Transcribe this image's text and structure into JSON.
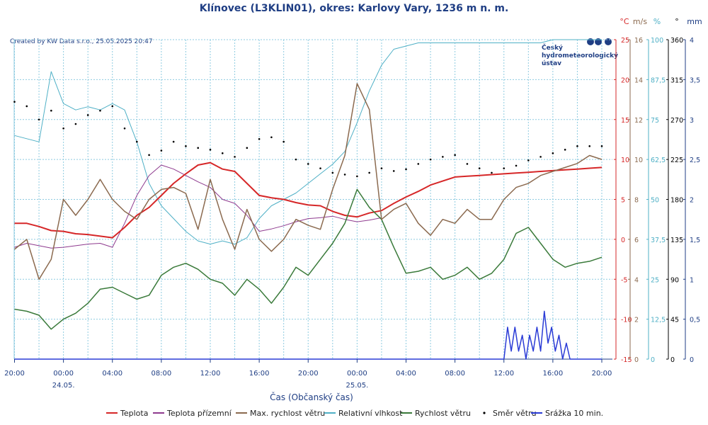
{
  "chart_data": {
    "type": "line",
    "title": "Klínovec (L3KLIN01), okres: Karlovy Vary, 1236 m n. m.",
    "credit": "Created by KW Data s.r.o., 25.05.2025 20:47",
    "logo_lines": [
      "Český",
      "hydrometeorologický",
      "ústav"
    ],
    "xlabel": "Čas (Občanský čas)",
    "x_ticks": [
      "20:00",
      "00:00",
      "04:00",
      "08:00",
      "12:00",
      "16:00",
      "20:00",
      "00:00",
      "04:00",
      "08:00",
      "12:00",
      "16:00",
      "20:00"
    ],
    "date_labels": [
      {
        "after_tick": 1,
        "text": "24.05."
      },
      {
        "after_tick": 7,
        "text": "25.05."
      }
    ],
    "xlim_hours": [
      0,
      48
    ],
    "axes": [
      {
        "unit": "°C",
        "color": "#d62728",
        "min": -15,
        "max": 25,
        "ticks": [
          "-15",
          "-10",
          "-5",
          "0",
          "5",
          "10",
          "15",
          "20",
          "25"
        ]
      },
      {
        "unit": "m/s",
        "color": "#8b6a4f",
        "min": 0,
        "max": 16,
        "ticks": [
          "0",
          "2",
          "4",
          "6",
          "8",
          "10",
          "12",
          "14",
          "16"
        ]
      },
      {
        "unit": "%",
        "color": "#4fb0c6",
        "min": 0,
        "max": 100,
        "ticks": [
          "0",
          "12,5",
          "25",
          "37,5",
          "50",
          "62,5",
          "75",
          "87,5",
          "100"
        ]
      },
      {
        "unit": "°",
        "color": "#000000",
        "min": 0,
        "max": 360,
        "ticks": [
          "0",
          "45",
          "90",
          "135",
          "180",
          "225",
          "270",
          "315",
          "360"
        ]
      },
      {
        "unit": "mm",
        "color": "#1f3e84",
        "min": 0,
        "max": 4,
        "ticks": [
          "0",
          "0,5",
          "1",
          "1,5",
          "2",
          "2,5",
          "3",
          "3,5",
          "4"
        ]
      }
    ],
    "series": [
      {
        "name": "Teplota",
        "axis": 0,
        "color": "#d62728",
        "width": 2,
        "style": "line",
        "x": [
          0,
          1,
          2,
          3,
          4,
          5,
          6,
          7,
          8,
          9,
          10,
          11,
          12,
          13,
          14,
          15,
          16,
          17,
          18,
          19,
          20,
          21,
          22,
          23,
          24,
          25,
          26,
          27,
          28,
          29,
          30,
          31,
          32,
          33,
          34,
          35,
          36,
          37,
          38,
          39,
          40,
          41,
          42,
          43,
          44,
          45,
          46,
          47,
          48
        ],
        "y": [
          2.0,
          2.0,
          1.6,
          1.1,
          1.0,
          0.7,
          0.6,
          0.4,
          0.2,
          1.5,
          3.0,
          4.0,
          5.5,
          7.0,
          8.2,
          9.3,
          9.6,
          8.8,
          8.5,
          7.0,
          5.5,
          5.2,
          5.0,
          4.6,
          4.3,
          4.2,
          3.5,
          3.0,
          2.8,
          3.3,
          3.6,
          4.5,
          5.3,
          6.0,
          6.8,
          7.3,
          7.8,
          7.9,
          8.0,
          8.1,
          8.2,
          8.3,
          8.4,
          8.5,
          8.6,
          8.7,
          8.8,
          8.9,
          9.0
        ]
      },
      {
        "name": "Teplota přízemní",
        "axis": 0,
        "color": "#8e3a8e",
        "width": 1,
        "style": "line",
        "x": [
          0,
          1,
          2,
          3,
          4,
          5,
          6,
          7,
          8,
          9,
          10,
          11,
          12,
          13,
          14,
          15,
          16,
          17,
          18,
          19,
          20,
          21,
          22,
          23,
          24,
          25,
          26,
          27,
          28,
          29,
          30
        ],
        "y": [
          -1.0,
          -0.5,
          -0.8,
          -1.1,
          -1.0,
          -0.8,
          -0.6,
          -0.5,
          -1.0,
          2.0,
          5.5,
          8.0,
          9.3,
          8.8,
          8.0,
          7.2,
          6.5,
          5.0,
          4.5,
          3.0,
          1.0,
          1.3,
          1.7,
          2.2,
          2.6,
          2.7,
          2.9,
          2.5,
          2.2,
          2.4,
          2.7
        ]
      },
      {
        "name": "Max. rychlost větru",
        "axis": 1,
        "color": "#8b6a4f",
        "width": 1.5,
        "style": "line",
        "x": [
          0,
          1,
          2,
          3,
          4,
          5,
          6,
          7,
          8,
          9,
          10,
          11,
          12,
          13,
          14,
          15,
          16,
          17,
          18,
          19,
          20,
          21,
          22,
          23,
          24,
          25,
          26,
          27,
          28,
          29,
          30,
          31,
          32,
          33,
          34,
          35,
          36,
          37,
          38,
          39,
          40,
          41,
          42,
          43,
          44,
          45,
          46,
          47,
          48
        ],
        "y": [
          5.5,
          6.0,
          4.0,
          5.0,
          8.0,
          7.2,
          8.0,
          9.0,
          8.0,
          7.4,
          7.0,
          8.0,
          8.5,
          8.6,
          8.3,
          6.5,
          9.0,
          7.0,
          5.5,
          7.5,
          6.0,
          5.4,
          6.0,
          7.0,
          6.7,
          6.5,
          8.5,
          10.2,
          13.8,
          12.5,
          7.0,
          7.5,
          7.8,
          6.8,
          6.2,
          7.0,
          6.8,
          7.5,
          7.0,
          7.0,
          8.0,
          8.6,
          8.8,
          9.2,
          9.4,
          9.6,
          9.8,
          10.2,
          10.0
        ]
      },
      {
        "name": "Relativní vlhkost",
        "axis": 2,
        "color": "#4fb0c6",
        "width": 1,
        "style": "line",
        "x": [
          0,
          1,
          2,
          3,
          4,
          5,
          6,
          7,
          8,
          9,
          10,
          11,
          12,
          13,
          14,
          15,
          16,
          17,
          18,
          19,
          20,
          21,
          22,
          23,
          24,
          25,
          26,
          27,
          28,
          29,
          30,
          31,
          32,
          33,
          34,
          35,
          36,
          37,
          38,
          39,
          40,
          41,
          42,
          43,
          44,
          45,
          46,
          47,
          48
        ],
        "y": [
          70,
          69,
          68,
          90,
          80,
          78,
          79,
          78,
          80,
          78,
          68,
          55,
          48,
          44,
          40,
          37,
          36,
          37,
          36,
          38,
          44,
          48,
          50,
          52,
          55,
          58,
          61,
          65,
          74,
          84,
          92,
          97,
          98,
          99,
          99,
          99,
          99,
          99,
          99,
          99,
          99,
          99,
          99,
          99,
          100,
          100,
          100,
          100,
          100
        ]
      },
      {
        "name": "Rychlost větru",
        "axis": 1,
        "color": "#3a7a3a",
        "width": 1.5,
        "style": "line",
        "x": [
          0,
          1,
          2,
          3,
          4,
          5,
          6,
          7,
          8,
          9,
          10,
          11,
          12,
          13,
          14,
          15,
          16,
          17,
          18,
          19,
          20,
          21,
          22,
          23,
          24,
          25,
          26,
          27,
          28,
          29,
          30,
          31,
          32,
          33,
          34,
          35,
          36,
          37,
          38,
          39,
          40,
          41,
          42,
          43,
          44,
          45,
          46,
          47,
          48
        ],
        "y": [
          2.5,
          2.4,
          2.2,
          1.5,
          2.0,
          2.3,
          2.8,
          3.5,
          3.6,
          3.3,
          3.0,
          3.2,
          4.2,
          4.6,
          4.8,
          4.5,
          4.0,
          3.8,
          3.2,
          4.0,
          3.5,
          2.8,
          3.6,
          4.6,
          4.2,
          5.0,
          5.8,
          6.8,
          8.5,
          7.6,
          7.0,
          5.6,
          4.3,
          4.4,
          4.6,
          4.0,
          4.2,
          4.6,
          4.0,
          4.3,
          5.0,
          6.3,
          6.6,
          5.8,
          5.0,
          4.6,
          4.8,
          4.9,
          5.1
        ]
      },
      {
        "name": "Směr větru",
        "axis": 3,
        "color": "#000000",
        "style": "dots",
        "x": [
          0,
          1,
          2,
          3,
          4,
          5,
          6,
          7,
          8,
          9,
          10,
          11,
          12,
          13,
          14,
          15,
          16,
          17,
          18,
          19,
          20,
          21,
          22,
          23,
          24,
          25,
          26,
          27,
          28,
          29,
          30,
          31,
          32,
          33,
          34,
          35,
          36,
          37,
          38,
          39,
          40,
          41,
          42,
          43,
          44,
          45,
          46,
          47,
          48
        ],
        "y": [
          290,
          285,
          270,
          280,
          260,
          265,
          275,
          280,
          285,
          260,
          245,
          230,
          235,
          245,
          240,
          238,
          236,
          232,
          228,
          238,
          248,
          250,
          245,
          225,
          220,
          215,
          210,
          208,
          206,
          210,
          215,
          212,
          214,
          220,
          225,
          228,
          230,
          220,
          215,
          210,
          215,
          218,
          224,
          228,
          232,
          236,
          240,
          240,
          240
        ]
      },
      {
        "name": "Srážka 10 min.",
        "axis": 4,
        "color": "#2a3bd6",
        "width": 1.5,
        "style": "line",
        "x": [
          0,
          40.0,
          40.3,
          40.6,
          40.9,
          41.2,
          41.5,
          41.8,
          42.1,
          42.4,
          42.7,
          43.0,
          43.3,
          43.6,
          43.9,
          44.2,
          44.5,
          44.8,
          45.1,
          45.4,
          45.7,
          48
        ],
        "y": [
          0,
          0,
          0.4,
          0.1,
          0.4,
          0.1,
          0.3,
          0,
          0.3,
          0.1,
          0.4,
          0.1,
          0.6,
          0.2,
          0.4,
          0.1,
          0.3,
          0,
          0.2,
          0,
          0,
          0
        ]
      }
    ],
    "legend_placement": "bottom",
    "grid": true
  }
}
